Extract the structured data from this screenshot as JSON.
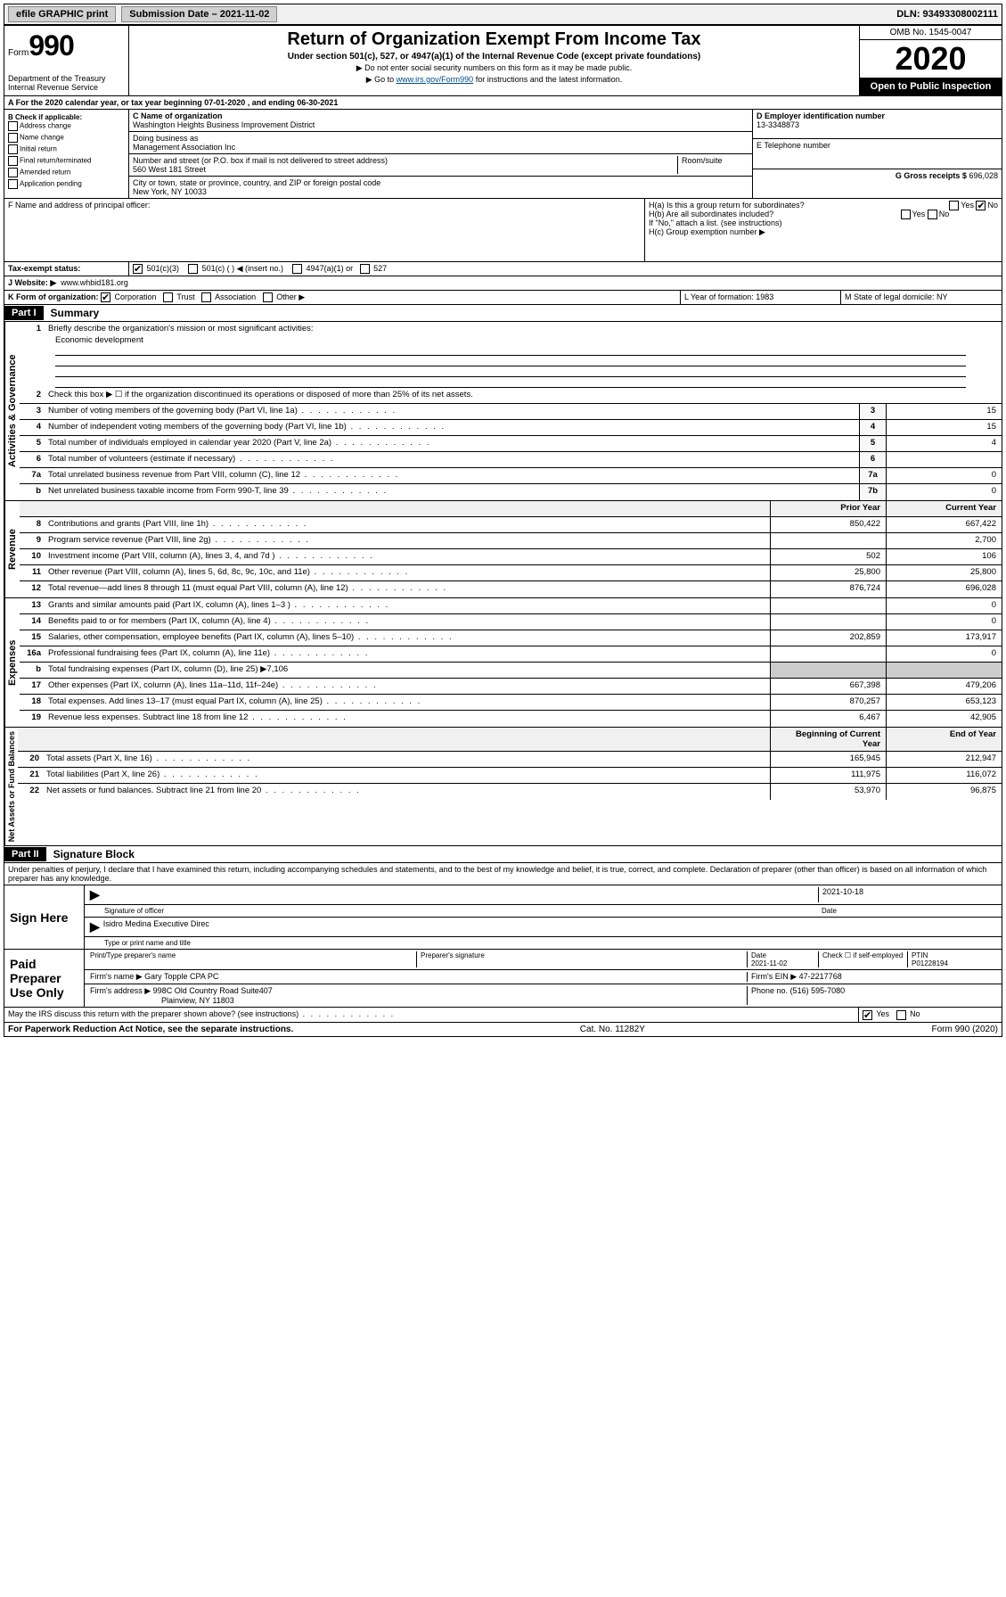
{
  "top_bar": {
    "efile": "efile GRAPHIC print",
    "submission_label": "Submission Date – 2021-11-02",
    "dln": "DLN: 93493308002111"
  },
  "header": {
    "form_prefix": "Form",
    "form_number": "990",
    "dept": "Department of the Treasury Internal Revenue Service",
    "title": "Return of Organization Exempt From Income Tax",
    "subtitle": "Under section 501(c), 527, or 4947(a)(1) of the Internal Revenue Code (except private foundations)",
    "note1": "▶ Do not enter social security numbers on this form as it may be made public.",
    "note2_prefix": "▶ Go to ",
    "note2_link": "www.irs.gov/Form990",
    "note2_suffix": " for instructions and the latest information.",
    "omb": "OMB No. 1545-0047",
    "year": "2020",
    "inspect": "Open to Public Inspection"
  },
  "period": "A For the 2020 calendar year, or tax year beginning 07-01-2020   , and ending 06-30-2021",
  "block_b": {
    "label": "B Check if applicable:",
    "opts": [
      "Address change",
      "Name change",
      "Initial return",
      "Final return/terminated",
      "Amended return",
      "Application pending"
    ]
  },
  "block_c": {
    "name_label": "C Name of organization",
    "name": "Washington Heights Business Improvement District",
    "dba_label": "Doing business as",
    "dba": "Management Association Inc",
    "addr_label": "Number and street (or P.O. box if mail is not delivered to street address)",
    "room_label": "Room/suite",
    "addr": "560 West 181 Street",
    "city_label": "City or town, state or province, country, and ZIP or foreign postal code",
    "city": "New York, NY  10033"
  },
  "block_d": {
    "label": "D Employer identification number",
    "value": "13-3348873"
  },
  "block_e": {
    "label": "E Telephone number",
    "value": ""
  },
  "block_g": {
    "label": "G Gross receipts $",
    "value": "696,028"
  },
  "block_f": "F  Name and address of principal officer:",
  "block_h": {
    "ha": "H(a)  Is this a group return for subordinates?",
    "hb": "H(b)  Are all subordinates included?",
    "hb_note": "If \"No,\" attach a list. (see instructions)",
    "hc": "H(c)  Group exemption number ▶"
  },
  "tax_exempt": {
    "label": "Tax-exempt status:",
    "o1": "501(c)(3)",
    "o2": "501(c) (   ) ◀ (insert no.)",
    "o3": "4947(a)(1) or",
    "o4": "527"
  },
  "website": {
    "label": "J   Website: ▶",
    "value": "www.whbid181.org"
  },
  "block_k": "K Form of organization:",
  "k_opts": [
    "Corporation",
    "Trust",
    "Association",
    "Other ▶"
  ],
  "block_l": "L Year of formation: 1983",
  "block_m": "M State of legal domicile: NY",
  "part1": {
    "header": "Part I",
    "title": "Summary",
    "line1_label": "Briefly describe the organization's mission or most significant activities:",
    "line1_value": "Economic development",
    "line2": "Check this box ▶ ☐  if the organization discontinued its operations or disposed of more than 25% of its net assets.",
    "vert_activities": "Activities & Governance",
    "vert_revenue": "Revenue",
    "vert_expenses": "Expenses",
    "vert_netassets": "Net Assets or Fund Balances",
    "col_prior": "Prior Year",
    "col_current": "Current Year",
    "col_begin": "Beginning of Current Year",
    "col_end": "End of Year",
    "lines_gov": [
      {
        "n": "3",
        "t": "Number of voting members of the governing body (Part VI, line 1a)",
        "b": "3",
        "v": "15"
      },
      {
        "n": "4",
        "t": "Number of independent voting members of the governing body (Part VI, line 1b)",
        "b": "4",
        "v": "15"
      },
      {
        "n": "5",
        "t": "Total number of individuals employed in calendar year 2020 (Part V, line 2a)",
        "b": "5",
        "v": "4"
      },
      {
        "n": "6",
        "t": "Total number of volunteers (estimate if necessary)",
        "b": "6",
        "v": ""
      },
      {
        "n": "7a",
        "t": "Total unrelated business revenue from Part VIII, column (C), line 12",
        "b": "7a",
        "v": "0"
      },
      {
        "n": "b",
        "t": "Net unrelated business taxable income from Form 990-T, line 39",
        "b": "7b",
        "v": "0"
      }
    ],
    "lines_rev": [
      {
        "n": "8",
        "t": "Contributions and grants (Part VIII, line 1h)",
        "p": "850,422",
        "c": "667,422"
      },
      {
        "n": "9",
        "t": "Program service revenue (Part VIII, line 2g)",
        "p": "",
        "c": "2,700"
      },
      {
        "n": "10",
        "t": "Investment income (Part VIII, column (A), lines 3, 4, and 7d )",
        "p": "502",
        "c": "106"
      },
      {
        "n": "11",
        "t": "Other revenue (Part VIII, column (A), lines 5, 6d, 8c, 9c, 10c, and 11e)",
        "p": "25,800",
        "c": "25,800"
      },
      {
        "n": "12",
        "t": "Total revenue—add lines 8 through 11 (must equal Part VIII, column (A), line 12)",
        "p": "876,724",
        "c": "696,028"
      }
    ],
    "lines_exp": [
      {
        "n": "13",
        "t": "Grants and similar amounts paid (Part IX, column (A), lines 1–3 )",
        "p": "",
        "c": "0"
      },
      {
        "n": "14",
        "t": "Benefits paid to or for members (Part IX, column (A), line 4)",
        "p": "",
        "c": "0"
      },
      {
        "n": "15",
        "t": "Salaries, other compensation, employee benefits (Part IX, column (A), lines 5–10)",
        "p": "202,859",
        "c": "173,917"
      },
      {
        "n": "16a",
        "t": "Professional fundraising fees (Part IX, column (A), line 11e)",
        "p": "",
        "c": "0"
      },
      {
        "n": "b",
        "t": "Total fundraising expenses (Part IX, column (D), line 25) ▶7,106",
        "p": null,
        "c": null
      },
      {
        "n": "17",
        "t": "Other expenses (Part IX, column (A), lines 11a–11d, 11f–24e)",
        "p": "667,398",
        "c": "479,206"
      },
      {
        "n": "18",
        "t": "Total expenses. Add lines 13–17 (must equal Part IX, column (A), line 25)",
        "p": "870,257",
        "c": "653,123"
      },
      {
        "n": "19",
        "t": "Revenue less expenses. Subtract line 18 from line 12",
        "p": "6,467",
        "c": "42,905"
      }
    ],
    "lines_net": [
      {
        "n": "20",
        "t": "Total assets (Part X, line 16)",
        "p": "165,945",
        "c": "212,947"
      },
      {
        "n": "21",
        "t": "Total liabilities (Part X, line 26)",
        "p": "111,975",
        "c": "116,072"
      },
      {
        "n": "22",
        "t": "Net assets or fund balances. Subtract line 21 from line 20",
        "p": "53,970",
        "c": "96,875"
      }
    ]
  },
  "part2": {
    "header": "Part II",
    "title": "Signature Block",
    "declaration": "Under penalties of perjury, I declare that I have examined this return, including accompanying schedules and statements, and to the best of my knowledge and belief, it is true, correct, and complete. Declaration of preparer (other than officer) is based on all information of which preparer has any knowledge."
  },
  "sign_here": {
    "label": "Sign Here",
    "date": "2021-10-18",
    "sig_label": "Signature of officer",
    "date_label": "Date",
    "name": "Isidro Medina  Executive Direc",
    "name_label": "Type or print name and title"
  },
  "paid_prep": {
    "label": "Paid Preparer Use Only",
    "h1": "Print/Type preparer's name",
    "h2": "Preparer's signature",
    "h3": "Date",
    "date": "2021-11-02",
    "h4": "Check ☐ if self-employed",
    "h5": "PTIN",
    "ptin": "P01228194",
    "firm_name_label": "Firm's name    ▶",
    "firm_name": "Gary Topple CPA PC",
    "firm_ein_label": "Firm's EIN ▶",
    "firm_ein": "47-2217768",
    "firm_addr_label": "Firm's address ▶",
    "firm_addr1": "998C Old Country Road Suite407",
    "firm_addr2": "Plainview, NY  11803",
    "phone_label": "Phone no.",
    "phone": "(516) 595-7080"
  },
  "discuss": "May the IRS discuss this return with the preparer shown above? (see instructions)",
  "yes": "Yes",
  "no": "No",
  "footer": {
    "left": "For Paperwork Reduction Act Notice, see the separate instructions.",
    "mid": "Cat. No. 11282Y",
    "right": "Form 990 (2020)"
  }
}
